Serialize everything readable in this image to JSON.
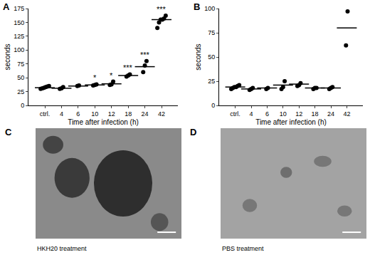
{
  "chart_data": [
    {
      "type": "scatter",
      "title": "A",
      "categories": [
        "ctrl.",
        "4",
        "6",
        "10",
        "12",
        "18",
        "24",
        "42"
      ],
      "points": [
        [
          30,
          31,
          32,
          33,
          34,
          35
        ],
        [
          30,
          31,
          33
        ],
        [
          35,
          36
        ],
        [
          36,
          37,
          38
        ],
        [
          37,
          38,
          43
        ],
        [
          52,
          54,
          56
        ],
        [
          60,
          72,
          80
        ],
        [
          140,
          150,
          155,
          155,
          157,
          162
        ]
      ],
      "means": [
        32,
        31,
        35,
        37,
        39,
        54,
        70,
        155
      ],
      "annotations": [
        null,
        null,
        null,
        "*",
        "*",
        "***",
        "***",
        "***"
      ],
      "y_label": "seconds",
      "x_label": "Time after infection (h)",
      "ylim": [
        0,
        175
      ],
      "yticks": [
        0,
        25,
        50,
        75,
        100,
        125,
        150,
        175
      ],
      "color": "#000000",
      "marker": "circle",
      "grid": false
    },
    {
      "type": "scatter",
      "title": "B",
      "categories": [
        "ctrl.",
        "4",
        "6",
        "10",
        "12",
        "18",
        "24",
        "42"
      ],
      "points": [
        [
          17,
          18,
          19,
          19,
          20,
          21
        ],
        [
          16,
          17,
          18
        ],
        [
          17,
          18
        ],
        [
          17,
          19,
          25
        ],
        [
          20,
          21,
          23
        ],
        [
          17,
          18,
          18
        ],
        [
          17,
          18,
          19
        ],
        [
          62,
          97
        ]
      ],
      "means": [
        19,
        17,
        18,
        21,
        22,
        18,
        18,
        80
      ],
      "y_label": "seconds",
      "x_label": "Time after infection (h)",
      "ylim": [
        0,
        100
      ],
      "yticks": [
        0,
        25,
        50,
        75,
        100
      ],
      "color": "#000000",
      "marker": "circle",
      "grid": false
    }
  ],
  "images": [
    {
      "title": "C",
      "caption": "HKH20 treatment"
    },
    {
      "title": "D",
      "caption": "PBS treatment"
    }
  ]
}
